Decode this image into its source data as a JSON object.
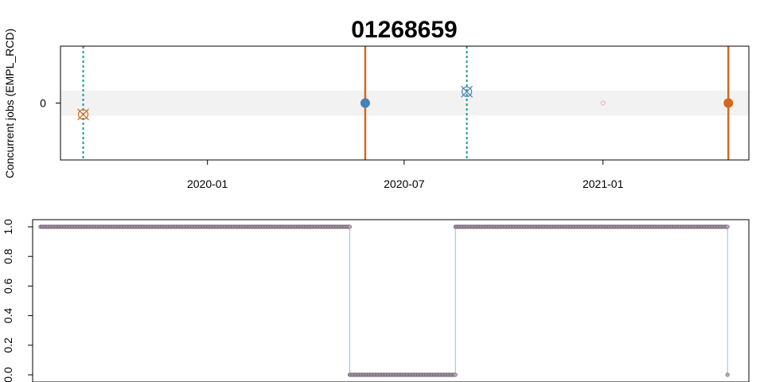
{
  "chart_data": [
    {
      "type": "scatter",
      "title": "01268659",
      "ylabel": "Concurrent jobs (EMPL_RCD)",
      "x_tick_labels": [
        "2020-01",
        "2020-07",
        "2021-01"
      ],
      "x_ticks": [
        "2020-01-01",
        "2020-07-01",
        "2021-01-01"
      ],
      "xlim": [
        "2019-08-18",
        "2021-05-16"
      ],
      "y_tick_labels": [
        "0"
      ],
      "y_ticks": [
        0
      ],
      "ylim": [
        -1,
        1
      ],
      "band": {
        "from": -0.22,
        "to": 0.22,
        "color": "#f2f2f2"
      },
      "vertical_lines": [
        {
          "x": "2019-09-08",
          "style": "dotted",
          "color": "#1a9a8a"
        },
        {
          "x": "2020-05-26",
          "style": "solid",
          "color": "#d2691e"
        },
        {
          "x": "2020-08-28",
          "style": "dotted",
          "color": "#1a9a8a"
        },
        {
          "x": "2021-04-27",
          "style": "solid",
          "color": "#d2691e"
        }
      ],
      "points": [
        {
          "x": "2019-09-08",
          "y": -0.2,
          "marker": "circle-x",
          "color": "#d2691e"
        },
        {
          "x": "2020-05-26",
          "y": 0,
          "marker": "filled-circle",
          "color": "#4682b4"
        },
        {
          "x": "2020-08-28",
          "y": 0.2,
          "marker": "circle-x",
          "color": "#4682b4"
        },
        {
          "x": "2021-01-01",
          "y": 0,
          "marker": "small-circle",
          "color": "#ff99cc"
        },
        {
          "x": "2021-04-27",
          "y": 0,
          "marker": "filled-circle",
          "color": "#d2691e"
        }
      ]
    },
    {
      "type": "line",
      "title": "",
      "ylabel": "",
      "y_tick_labels": [
        "0.0",
        "0.2",
        "0.4",
        "0.6",
        "0.8",
        "1.0"
      ],
      "y_ticks": [
        0,
        0.2,
        0.4,
        0.6,
        0.8,
        1.0
      ],
      "ylim": [
        0,
        1
      ],
      "xlim": [
        "2019-08-18",
        "2021-05-16"
      ],
      "line_color": "#7ec8d6",
      "point_color": "#c8a2c8",
      "segments": [
        {
          "from": "2019-08-25",
          "to": "2020-05-26",
          "value": 1
        },
        {
          "from": "2020-05-26",
          "to": "2020-08-28",
          "value": 0
        },
        {
          "from": "2020-08-28",
          "to": "2021-04-27",
          "value": 1
        },
        {
          "from": "2021-04-27",
          "to": "2021-04-27",
          "value": 0
        }
      ]
    }
  ]
}
